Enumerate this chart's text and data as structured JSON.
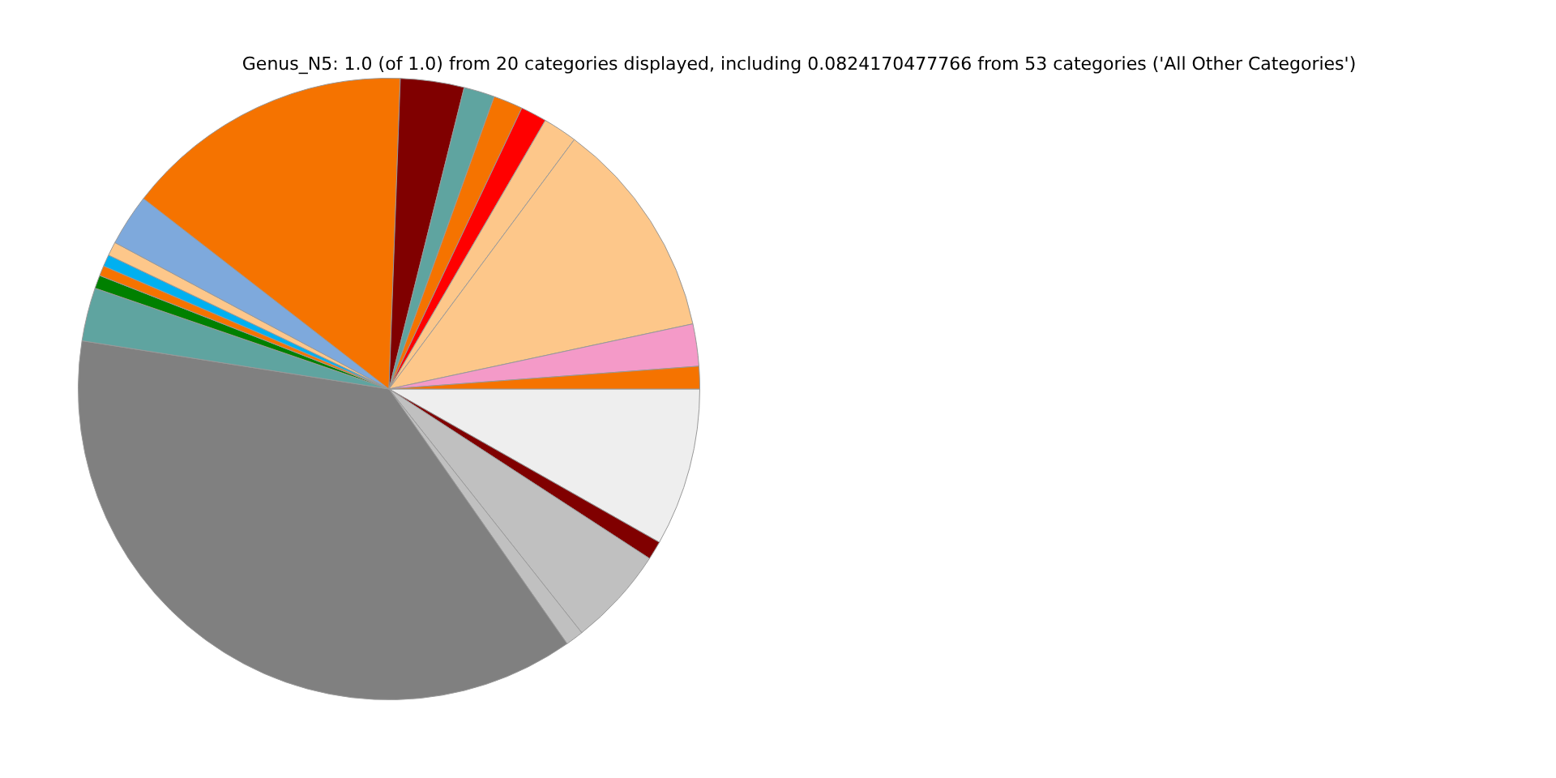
{
  "chart_data": {
    "type": "pie",
    "title": "Genus_N5: 1.0 (of 1.0) from 20 categories displayed, including 0.0824170477766 from 53 categories ('All Other Categories')",
    "categories": [
      null,
      null,
      null,
      null,
      null,
      null,
      null,
      null,
      null,
      null,
      null,
      null,
      null,
      null,
      null,
      null,
      null,
      null,
      null,
      null
    ],
    "values": [
      1.17,
      2.19,
      11.47,
      1.78,
      1.36,
      1.53,
      1.61,
      3.31,
      15.08,
      2.69,
      0.72,
      0.61,
      0.53,
      0.69,
      2.78,
      37.19,
      0.94,
      5.17,
      0.97,
      8.21
    ],
    "colors": [
      "#f57300",
      "#f49ac8",
      "#fdc78a",
      "#fdc78a",
      "#ff0000",
      "#f57300",
      "#5fa4a0",
      "#800000",
      "#f57300",
      "#7ea9dc",
      "#fdc78a",
      "#00b0f0",
      "#f57300",
      "#008000",
      "#5fa4a0",
      "#808080",
      "#c0c0c0",
      "#c0c0c0",
      "#800000",
      "#eeeeee"
    ],
    "legend": false
  }
}
